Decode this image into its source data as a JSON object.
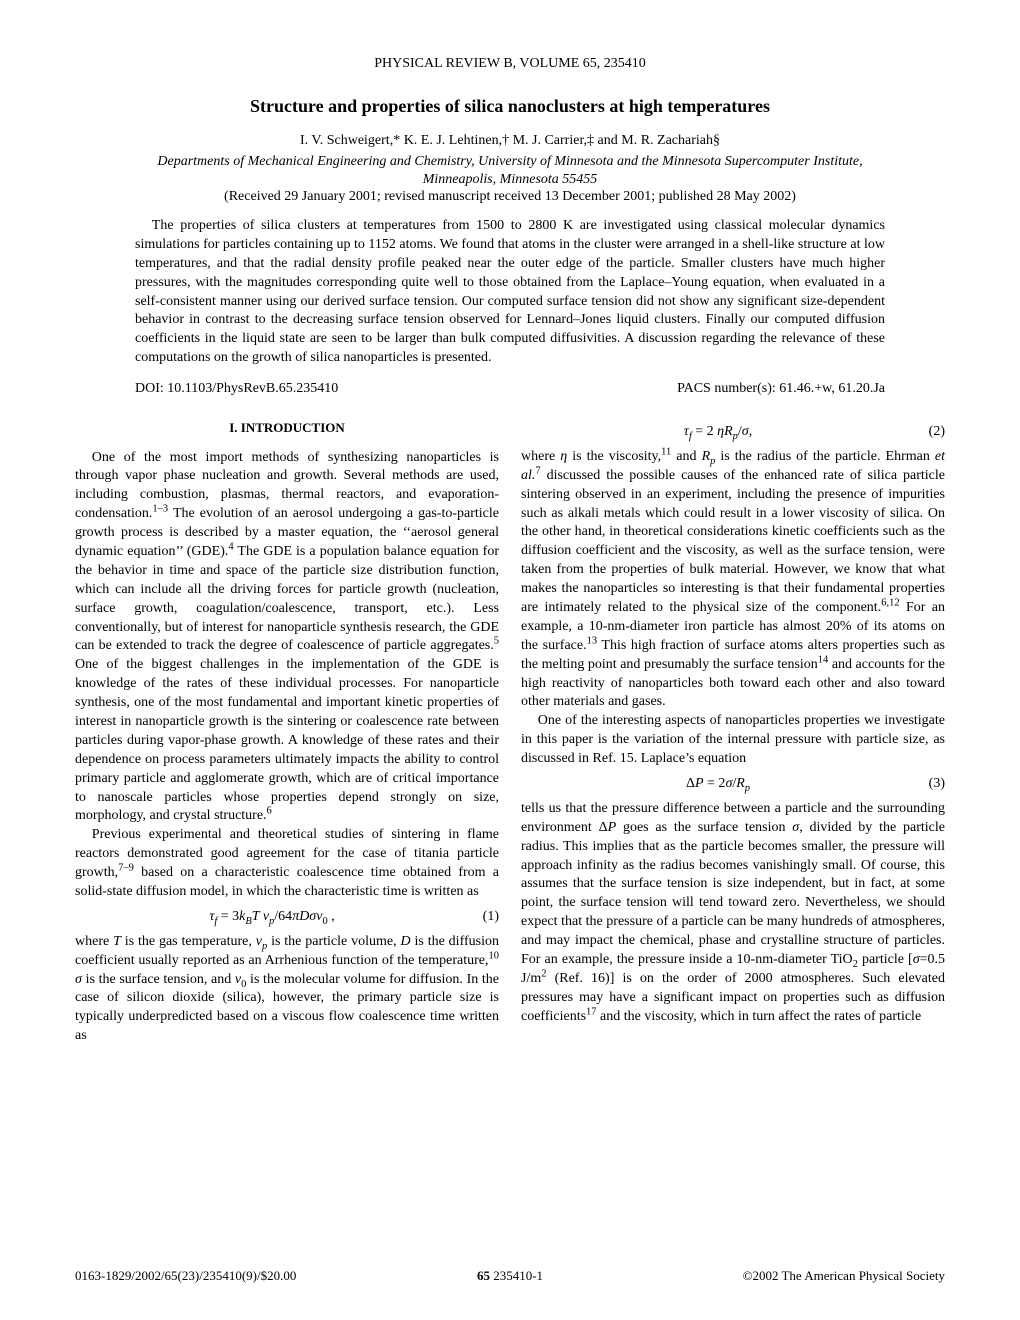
{
  "journal_header": "PHYSICAL REVIEW B, VOLUME 65, 235410",
  "title": "Structure and properties of silica nanoclusters at high temperatures",
  "authors_html": "I. V. Schweigert,* K. E. J. Lehtinen,&#8224; M. J. Carrier,&#8225; and M. R. Zachariah&#167;",
  "affiliation_line1": "Departments of Mechanical Engineering and Chemistry, University of Minnesota and the Minnesota Supercomputer Institute,",
  "affiliation_line2": "Minneapolis, Minnesota 55455",
  "dates": "(Received 29 January 2001; revised manuscript received 13 December 2001; published 28 May 2002)",
  "abstract": "The properties of silica clusters at temperatures from 1500 to 2800 K are investigated using classical molecular dynamics simulations for particles containing up to 1152 atoms. We found that atoms in the cluster were arranged in a shell-like structure at low temperatures, and that the radial density profile peaked near the outer edge of the particle. Smaller clusters have much higher pressures, with the magnitudes corresponding quite well to those obtained from the Laplace–Young equation, when evaluated in a self-consistent manner using our derived surface tension. Our computed surface tension did not show any significant size-dependent behavior in contrast to the decreasing surface tension observed for Lennard–Jones liquid clusters. Finally our computed diffusion coefficients in the liquid state are seen to be larger than bulk computed diffusivities. A discussion regarding the relevance of these computations on the growth of silica nanoparticles is presented.",
  "doi": "DOI: 10.1103/PhysRevB.65.235410",
  "pacs": "PACS number(s): 61.46.+w, 61.20.Ja",
  "section1_heading": "I. INTRODUCTION",
  "left": {
    "p1_html": "One of the most import methods of synthesizing nanoparticles is through vapor phase nucleation and growth. Several methods are used, including combustion, plasmas, thermal reactors, and evaporation-condensation.<sup>1–3</sup> The evolution of an aerosol undergoing a gas-to-particle growth process is described by a master equation, the &lsquo;&lsquo;aerosol general dynamic equation&rsquo;&rsquo; (GDE).<sup>4</sup> The GDE is a population balance equation for the behavior in time and space of the particle size distribution function, which can include all the driving forces for particle growth (nucleation, surface growth, coagulation/coalescence, transport, etc.). Less conventionally, but of interest for nanoparticle synthesis research, the GDE can be extended to track the degree of coalescence of particle aggregates.<sup>5</sup> One of the biggest challenges in the implementation of the GDE is knowledge of the rates of these individual processes. For nanoparticle synthesis, one of the most fundamental and important kinetic properties of interest in nanoparticle growth is the sintering or coalescence rate between particles during vapor-phase growth. A knowledge of these rates and their dependence on process parameters ultimately impacts the ability to control primary particle and agglomerate growth, which are of critical importance to nanoscale particles whose properties depend strongly on size, morphology, and crystal structure.<sup>6</sup>",
    "p2_html": "Previous experimental and theoretical studies of sintering in flame reactors demonstrated good agreement for the case of titania particle growth,<sup>7–9</sup> based on a characteristic coalescence time obtained from a solid-state diffusion model, in which the characteristic time is written as",
    "eq1_html": "<span class=\"ital\">&tau;<sub>f</sub></span> = 3<span class=\"ital\">k<sub>B</sub>T v<sub>p</sub></span>/64<span class=\"ital\">&pi;D&sigma;v</span><sub>0</sub> ,",
    "eq1_num": "(1)",
    "p3_html": "where <span class=\"ital\">T</span> is the gas temperature, <span class=\"ital\">v<sub>p</sub></span> is the particle volume, <span class=\"ital\">D</span> is the diffusion coefficient usually reported as an Arrhenious function of the temperature,<sup>10</sup> <span class=\"ital\">&sigma;</span> is the surface tension, and <span class=\"ital\">v</span><sub>0</sub> is the molecular volume for diffusion. In the case of silicon dioxide (silica), however, the primary particle size is typically underpredicted based on a viscous flow coalescence time written as"
  },
  "right": {
    "eq2_html": "<span class=\"ital\">&tau;<sub>f</sub></span> = 2 <span class=\"ital\">&eta;R<sub>p</sub></span>/<span class=\"ital\">&sigma;</span>,",
    "eq2_num": "(2)",
    "p1_html": "where <span class=\"ital\">&eta;</span> is the viscosity,<sup>11</sup> and <span class=\"ital\">R<sub>p</sub></span> is the radius of the particle. Ehrman <span class=\"ital\">et al.</span><sup>7</sup> discussed the possible causes of the enhanced rate of silica particle sintering observed in an experiment, including the presence of impurities such as alkali metals which could result in a lower viscosity of silica. On the other hand, in theoretical considerations kinetic coefficients such as the diffusion coefficient and the viscosity, as well as the surface tension, were taken from the properties of bulk material. However, we know that what makes the nanoparticles so interesting is that their fundamental properties are intimately related to the physical size of the component.<sup>6,12</sup> For an example, a 10-nm-diameter iron particle has almost 20% of its atoms on the surface.<sup>13</sup> This high fraction of surface atoms alters properties such as the melting point and presumably the surface tension<sup>14</sup> and accounts for the high reactivity of nanoparticles both toward each other and also toward other materials and gases.",
    "p2_html": "One of the interesting aspects of nanoparticles properties we investigate in this paper is the variation of the internal pressure with particle size, as discussed in Ref. 15. Laplace&rsquo;s equation",
    "eq3_html": "&Delta;<span class=\"ital\">P</span> = 2<span class=\"ital\">&sigma;</span>/<span class=\"ital\">R<sub>p</sub></span>",
    "eq3_num": "(3)",
    "p3_html": "tells us that the pressure difference between a particle and the surrounding environment &Delta;<span class=\"ital\">P</span> goes as the surface tension <span class=\"ital\">&sigma;</span>, divided by the particle radius. This implies that as the particle becomes smaller, the pressure will approach infinity as the radius becomes vanishingly small. Of course, this assumes that the surface tension is size independent, but in fact, at some point, the surface tension will tend toward zero. Nevertheless, we should expect that the pressure of a particle can be many hundreds of atmospheres, and may impact the chemical, phase and crystalline structure of particles. For an example, the pressure inside a 10-nm-diameter TiO<sub>2</sub> particle [<span class=\"ital\">&sigma;</span>=0.5 J/m<sup>2</sup> (Ref. 16)] is on the order of 2000 atmospheres. Such elevated pressures may have a significant impact on properties such as diffusion coefficients<sup>17</sup> and the viscosity, which in turn affect the rates of particle"
  },
  "footer": {
    "left": "0163-1829/2002/65(23)/235410(9)/$20.00",
    "center_html": "<b>65</b> 235410-1",
    "right": "©2002 The American Physical Society"
  }
}
